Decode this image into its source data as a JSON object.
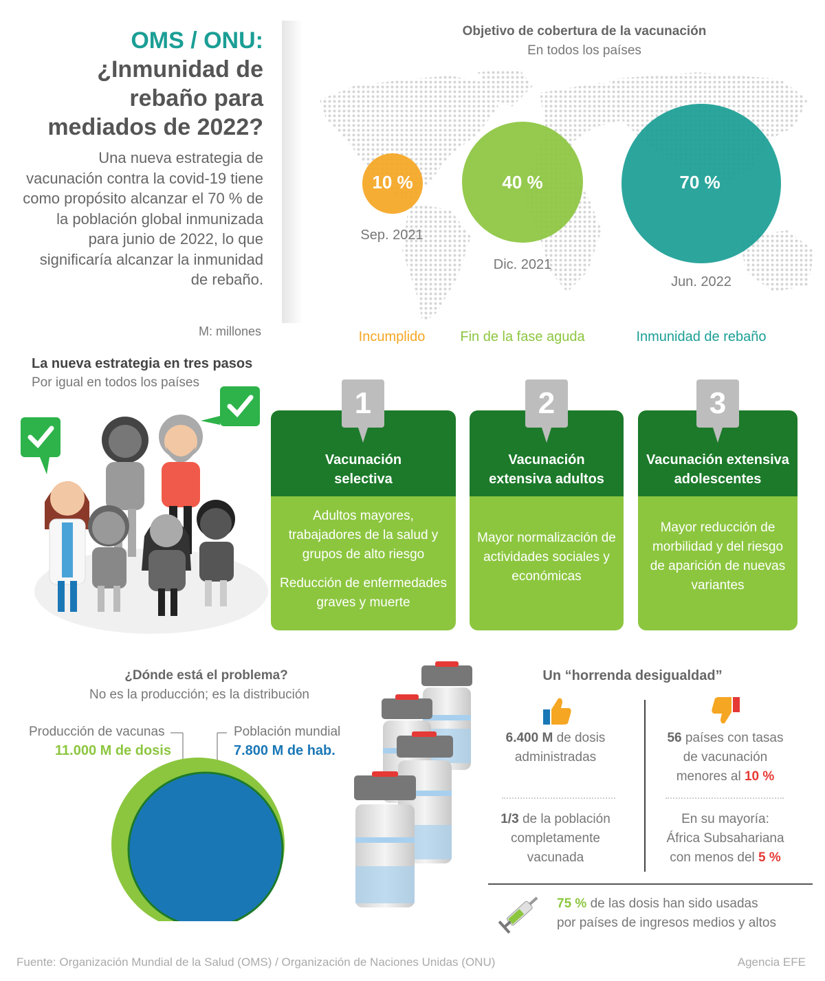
{
  "header": {
    "title_line1": "OMS / ONU:",
    "title_line2": "¿Inmunidad de rebaño para mediados de 2022?",
    "intro": "Una nueva estrategia de vacunación contra la covid-19 tiene como propósito alcanzar el 70 % de la población global inmunizada para junio de 2022, lo que significaría alcanzar la inmunidad de rebaño.",
    "unit_note": "M: millones"
  },
  "coverage": {
    "title": "Objetivo de cobertura de la vacunación",
    "subtitle": "En todos los países",
    "targets": [
      {
        "value": "10 %",
        "date": "Sep. 2021",
        "status": "Incumplido",
        "color": "#f5a623"
      },
      {
        "value": "40 %",
        "date": "Dic. 2021",
        "status": "Fin de la fase aguda",
        "color": "#8cc63f"
      },
      {
        "value": "70 %",
        "date": "Jun. 2022",
        "status": "Inmunidad de rebaño",
        "color": "#1a9e95"
      }
    ]
  },
  "strategy": {
    "title": "La nueva estrategia en tres pasos",
    "subtitle": "Por igual en todos los países",
    "steps": [
      {
        "number": "1",
        "title": "Vacunación selectiva",
        "body1": "Adultos mayores, trabajadores de la salud y grupos de alto riesgo",
        "body2": "Reducción de enfermedades graves y muerte"
      },
      {
        "number": "2",
        "title": "Vacunación extensiva adultos",
        "body1": "Mayor normalización de actividades sociales y económicas"
      },
      {
        "number": "3",
        "title": "Vacunación extensiva adolescentes",
        "body1": "Mayor reducción de morbilidad y del riesgo de aparición de nuevas variantes"
      }
    ]
  },
  "problem": {
    "title": "¿Dónde está el problema?",
    "subtitle": "No es la producción; es la distribución",
    "production_label": "Producción de vacunas",
    "production_value": "11.000 M de dosis",
    "population_label": "Población mundial",
    "population_value": "7.800 M de hab.",
    "colors": {
      "production": "#8cc63f",
      "population": "#1a77b6"
    }
  },
  "inequality": {
    "title": "Un “horrenda desigualdad”",
    "left": {
      "stat1_bold": "6.400 M",
      "stat1_rest": "de dosis administradas",
      "stat2_bold": "1/3",
      "stat2_rest": "de la población completamente vacunada"
    },
    "right": {
      "stat1_bold": "56",
      "stat1_rest": "países con tasas de vacunación menores al",
      "stat1_red": "10 %",
      "stat2_text": "En su mayoría: África Subsahariana con menos del",
      "stat2_red": "5 %"
    },
    "bottom_bold": "75 %",
    "bottom_rest1": "de las dosis han sido usadas",
    "bottom_rest2": "por países de ingresos medios y altos"
  },
  "footer": {
    "source": "Fuente: Organización Mundial de la Salud (OMS) / Organización de Naciones Unidas (ONU)",
    "agency": "Agencia EFE"
  }
}
